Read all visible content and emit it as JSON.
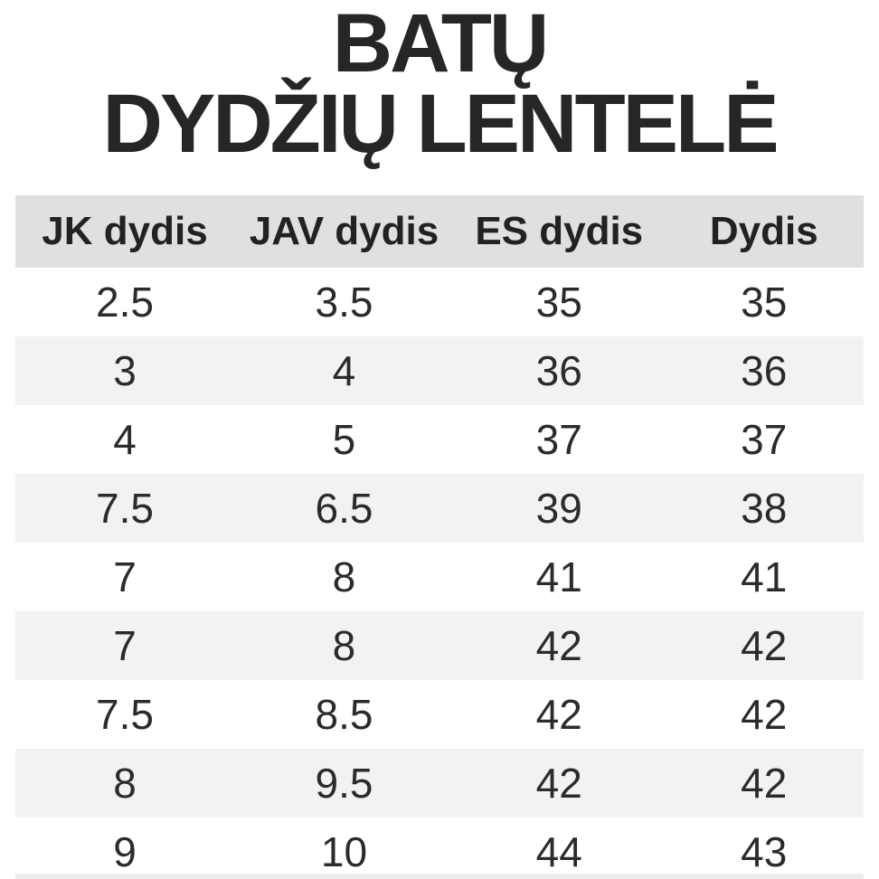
{
  "title": {
    "line1": "BATŲ",
    "line2": "DYDŽIŲ LENTELĖ"
  },
  "table": {
    "headers": [
      "JK dydis",
      "JAV dydis",
      "ES dydis",
      "Dydis"
    ],
    "rows": [
      [
        "2.5",
        "3.5",
        "35",
        "35"
      ],
      [
        "3",
        "4",
        "36",
        "36"
      ],
      [
        "4",
        "5",
        "37",
        "37"
      ],
      [
        "7.5",
        "6.5",
        "39",
        "38"
      ],
      [
        "7",
        "8",
        "41",
        "41"
      ],
      [
        "7",
        "8",
        "42",
        "42"
      ],
      [
        "7.5",
        "8.5",
        "42",
        "42"
      ],
      [
        "8",
        "9.5",
        "42",
        "42"
      ],
      [
        "9",
        "10",
        "44",
        "43"
      ]
    ]
  },
  "colors": {
    "header_bg": "#e0e0de",
    "alt_row_bg": "#f2f2f0",
    "row_bg": "#ffffff",
    "text": "#2b2b2b",
    "title_text": "#262626"
  },
  "chart_data": {
    "type": "table",
    "title": "BATŲ DYDŽIŲ LENTELĖ",
    "columns": [
      "JK dydis",
      "JAV dydis",
      "ES dydis",
      "Dydis"
    ],
    "rows": [
      [
        2.5,
        3.5,
        35,
        35
      ],
      [
        3,
        4,
        36,
        36
      ],
      [
        4,
        5,
        37,
        37
      ],
      [
        7.5,
        6.5,
        39,
        38
      ],
      [
        7,
        8,
        41,
        41
      ],
      [
        7,
        8,
        42,
        42
      ],
      [
        7.5,
        8.5,
        42,
        42
      ],
      [
        8,
        9.5,
        42,
        42
      ],
      [
        9,
        10,
        44,
        43
      ]
    ],
    "layout": {
      "header_background": "#e0e0de",
      "zebra_striping": true,
      "striped_row_indexes": [
        1,
        3,
        5,
        7
      ],
      "alignment": "center"
    }
  }
}
